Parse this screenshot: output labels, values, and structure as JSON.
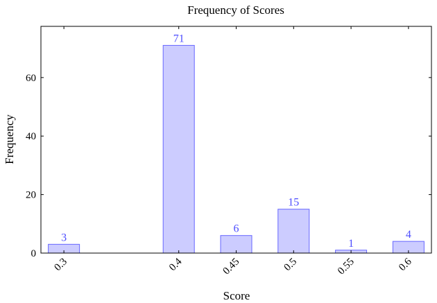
{
  "chart_data": {
    "type": "bar",
    "title": "Frequency of Scores",
    "xlabel": "Score",
    "ylabel": "Frequency",
    "x": [
      0.3,
      0.4,
      0.45,
      0.5,
      0.55,
      0.6
    ],
    "x_tick_labels": [
      "0.3",
      "0.4",
      "0.45",
      "0.5",
      "0.55",
      "0.6"
    ],
    "values": [
      3,
      71,
      6,
      15,
      1,
      4
    ],
    "data_labels": [
      "3",
      "71",
      "6",
      "15",
      "1",
      "4"
    ],
    "y_ticks": [
      0,
      20,
      40,
      60
    ],
    "y_tick_labels": [
      "0",
      "20",
      "40",
      "60"
    ],
    "xlim": [
      0.28,
      0.62
    ],
    "ylim": [
      0,
      77.5
    ],
    "x_tick_rotation_deg": 45,
    "grid": false,
    "legend": "none",
    "bar_fill": "#ccccff",
    "bar_stroke": "#6666ff",
    "label_color": "#4d4dff"
  }
}
